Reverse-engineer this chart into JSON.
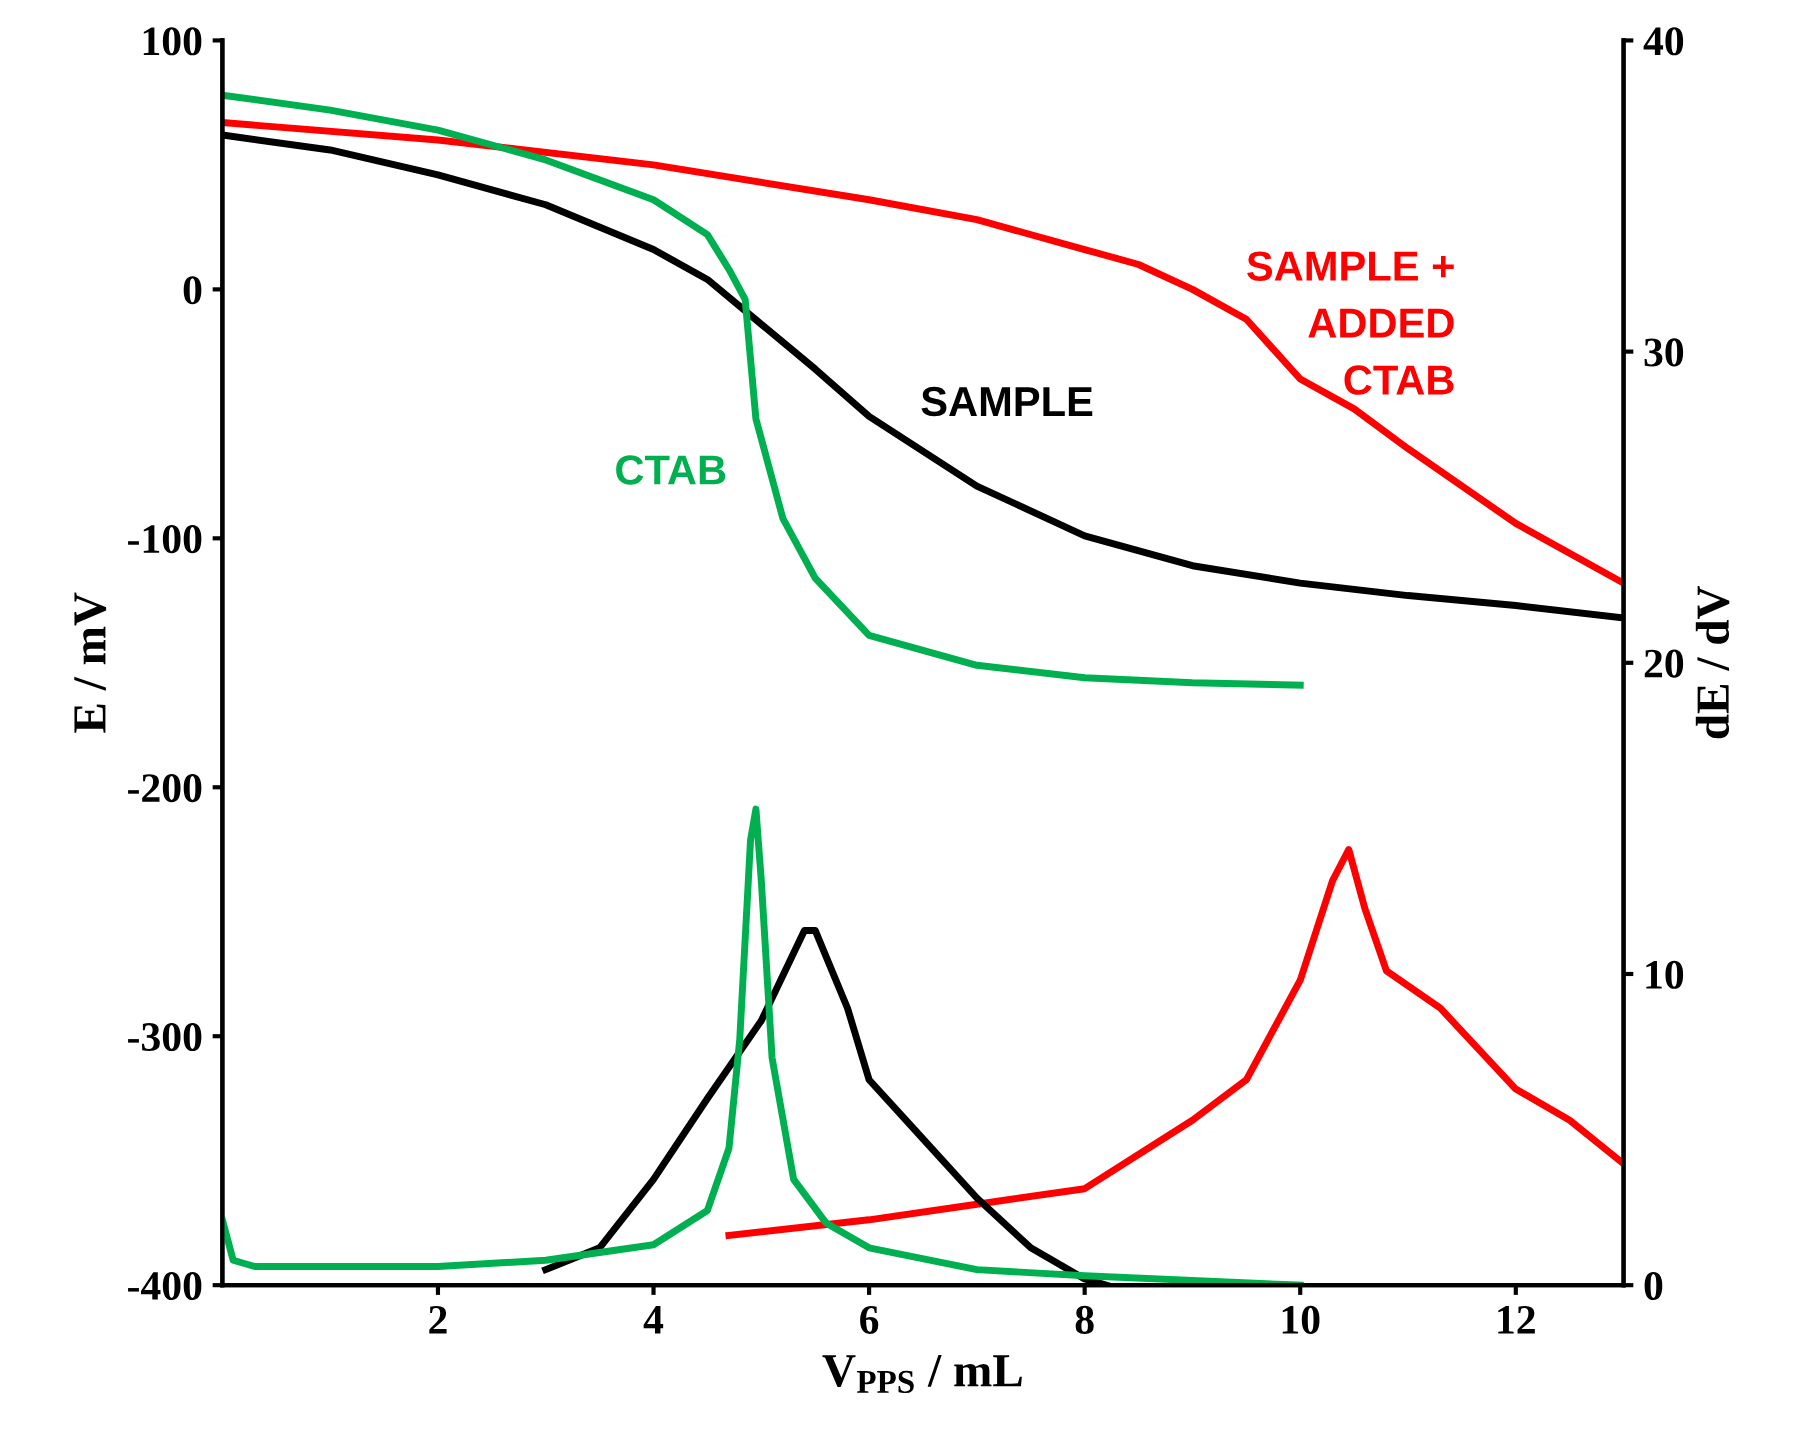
{
  "chart_data": {
    "type": "line",
    "xlabel": "V$_{PPS}$ / mL",
    "ylabel": "E / mV",
    "y2label": "dE / dV",
    "xlim": [
      0,
      13
    ],
    "xticks": [
      2,
      4,
      6,
      8,
      10,
      12
    ],
    "ylim": [
      -400,
      100
    ],
    "yticks": [
      -400,
      -300,
      -200,
      -100,
      0,
      100
    ],
    "y2lim": [
      0,
      40
    ],
    "y2ticks": [
      0,
      10,
      20,
      30,
      40
    ],
    "marker": "none",
    "line_style": "solid",
    "series": [
      {
        "color": "#ff0000",
        "x": [
          0,
          2,
          4,
          6,
          7,
          8,
          8.5,
          9,
          9.5,
          10,
          10.5,
          11,
          12,
          13
        ],
        "values": [
          67,
          60,
          50,
          36,
          28,
          16,
          10,
          0,
          -12,
          -36,
          -48,
          -64,
          -94,
          -118
        ]
      },
      {
        "color": "#000000",
        "x": [
          0,
          1,
          2,
          3,
          4,
          4.5,
          5,
          5.5,
          6,
          7,
          8,
          9,
          10,
          11,
          12,
          13
        ],
        "values": [
          62,
          56,
          46,
          34,
          16,
          4,
          -14,
          -32,
          -51,
          -79,
          -99,
          -111,
          -118,
          -123,
          -127,
          -132
        ]
      },
      {
        "color": "#00b050",
        "x": [
          0,
          1,
          2,
          3,
          4,
          4.5,
          4.7,
          4.85,
          4.95,
          5.2,
          5.5,
          6,
          7,
          8,
          9,
          10
        ],
        "values": [
          78,
          72,
          64,
          52,
          36,
          22,
          8,
          -4,
          -52,
          -92,
          -116,
          -139,
          -151,
          -156,
          -158,
          -159
        ]
      },
      {
        "color": "#ff0000",
        "axis": "y2",
        "x": [
          4.7,
          6,
          7,
          8,
          9,
          9.5,
          10,
          10.3,
          10.45,
          10.6,
          10.8,
          11.3,
          12,
          12.5,
          13
        ],
        "values": [
          1.6,
          2.1,
          2.6,
          3.1,
          5.3,
          6.6,
          9.8,
          13,
          14,
          12.1,
          10.1,
          8.9,
          6.3,
          5.3,
          3.9
        ]
      },
      {
        "color": "#000000",
        "axis": "y2",
        "x": [
          3,
          3.5,
          4,
          4.5,
          5,
          5.4,
          5.5,
          5.8,
          6,
          6.5,
          7,
          7.5,
          8,
          8.2
        ],
        "values": [
          0.5,
          1.2,
          3.4,
          6,
          8.5,
          11.4,
          11.4,
          8.9,
          6.6,
          4.7,
          2.8,
          1.2,
          0.2,
          0
        ]
      },
      {
        "color": "#00b050",
        "axis": "y2",
        "x": [
          0,
          0.1,
          0.3,
          2,
          3,
          4,
          4.5,
          4.7,
          4.8,
          4.9,
          4.95,
          5.0,
          5.1,
          5.3,
          5.6,
          6,
          7,
          8,
          10
        ],
        "values": [
          2.1,
          0.8,
          0.6,
          0.6,
          0.8,
          1.3,
          2.4,
          4.4,
          7.9,
          14.3,
          15.3,
          13,
          7.3,
          3.4,
          2,
          1.2,
          0.5,
          0.3,
          0
        ]
      }
    ],
    "annotations": [
      "SAMPLE +\nADDED\nCTAB",
      "SAMPLE",
      "CTAB"
    ]
  }
}
